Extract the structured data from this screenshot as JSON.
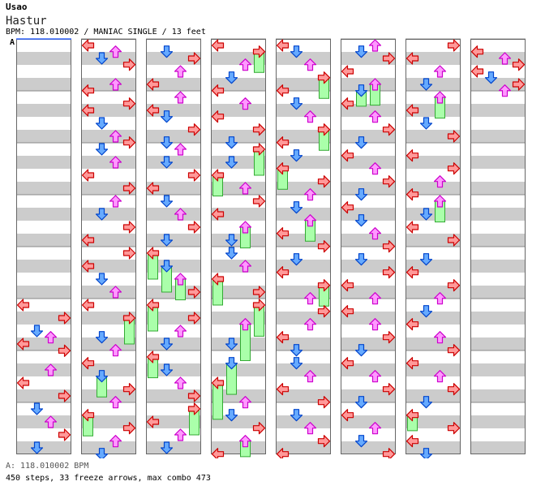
{
  "header": {
    "artist": "Usao",
    "title": "Hastur",
    "info": "BPM: 118.010002 / MANIAC SINGLE / 13 feet",
    "section_marker": "A"
  },
  "footer": {
    "bpm_line": "A: 118.010002 BPM",
    "stats_line": "450 steps, 33 freeze arrows, max combo 473"
  },
  "colors": {
    "stripe_gray": "#cccccc",
    "left_arrow": "#ff9999",
    "down_arrow": "#66aaff",
    "up_arrow": "#ff99ff",
    "right_arrow": "#ff9999",
    "freeze": "#aaffaa"
  },
  "chart_data": {
    "type": "step-chart",
    "lanes": [
      "left",
      "down",
      "up",
      "right"
    ],
    "columns": 8,
    "measures_per_column": 8,
    "notes": [
      {
        "col": 0,
        "m": 5,
        "b": 0.0,
        "l": 0
      },
      {
        "col": 0,
        "m": 5,
        "b": 0.25,
        "l": 3
      },
      {
        "col": 0,
        "m": 5,
        "b": 0.5,
        "l": 1
      },
      {
        "col": 0,
        "m": 5,
        "b": 0.62,
        "l": 2
      },
      {
        "col": 0,
        "m": 5,
        "b": 0.75,
        "l": 0
      },
      {
        "col": 0,
        "m": 5,
        "b": 0.88,
        "l": 3
      },
      {
        "col": 0,
        "m": 6,
        "b": 0.25,
        "l": 2
      },
      {
        "col": 0,
        "m": 6,
        "b": 0.5,
        "l": 0
      },
      {
        "col": 0,
        "m": 6,
        "b": 0.75,
        "l": 3
      },
      {
        "col": 0,
        "m": 7,
        "b": 0.0,
        "l": 1
      },
      {
        "col": 0,
        "m": 7,
        "b": 0.25,
        "l": 2
      },
      {
        "col": 0,
        "m": 7,
        "b": 0.5,
        "l": 3
      },
      {
        "col": 0,
        "m": 7,
        "b": 0.75,
        "l": 1
      },
      {
        "col": 1,
        "m": 0,
        "b": 0.0,
        "l": 0
      },
      {
        "col": 1,
        "m": 0,
        "b": 0.12,
        "l": 2
      },
      {
        "col": 1,
        "m": 0,
        "b": 0.25,
        "l": 1
      },
      {
        "col": 1,
        "m": 0,
        "b": 0.37,
        "l": 3
      },
      {
        "col": 1,
        "m": 0,
        "b": 0.75,
        "l": 2
      },
      {
        "col": 1,
        "m": 0,
        "b": 0.87,
        "l": 0
      },
      {
        "col": 1,
        "m": 1,
        "b": 0.12,
        "l": 3
      },
      {
        "col": 1,
        "m": 1,
        "b": 0.25,
        "l": 0
      },
      {
        "col": 1,
        "m": 1,
        "b": 0.5,
        "l": 1
      },
      {
        "col": 1,
        "m": 1,
        "b": 0.75,
        "l": 2
      },
      {
        "col": 1,
        "m": 1,
        "b": 0.87,
        "l": 3
      },
      {
        "col": 1,
        "m": 2,
        "b": 0.0,
        "l": 1
      },
      {
        "col": 1,
        "m": 2,
        "b": 0.25,
        "l": 2
      },
      {
        "col": 1,
        "m": 2,
        "b": 0.5,
        "l": 0
      },
      {
        "col": 1,
        "m": 2,
        "b": 0.75,
        "l": 3
      },
      {
        "col": 1,
        "m": 3,
        "b": 0.0,
        "l": 2
      },
      {
        "col": 1,
        "m": 3,
        "b": 0.25,
        "l": 1
      },
      {
        "col": 1,
        "m": 3,
        "b": 0.5,
        "l": 3
      },
      {
        "col": 1,
        "m": 3,
        "b": 0.75,
        "l": 0
      },
      {
        "col": 1,
        "m": 4,
        "b": 0.0,
        "l": 3
      },
      {
        "col": 1,
        "m": 4,
        "b": 0.25,
        "l": 0
      },
      {
        "col": 1,
        "m": 4,
        "b": 0.5,
        "l": 1
      },
      {
        "col": 1,
        "m": 4,
        "b": 0.75,
        "l": 2
      },
      {
        "col": 1,
        "m": 5,
        "b": 0.0,
        "l": 0
      },
      {
        "col": 1,
        "m": 5,
        "b": 0.25,
        "l": 3,
        "freeze": 0.5
      },
      {
        "col": 1,
        "m": 5,
        "b": 0.62,
        "l": 1
      },
      {
        "col": 1,
        "m": 5,
        "b": 0.87,
        "l": 2
      },
      {
        "col": 1,
        "m": 6,
        "b": 0.12,
        "l": 0
      },
      {
        "col": 1,
        "m": 6,
        "b": 0.37,
        "l": 1,
        "freeze": 0.4
      },
      {
        "col": 1,
        "m": 6,
        "b": 0.62,
        "l": 3
      },
      {
        "col": 1,
        "m": 6,
        "b": 0.87,
        "l": 2
      },
      {
        "col": 1,
        "m": 7,
        "b": 0.12,
        "l": 0,
        "freeze": 0.4
      },
      {
        "col": 1,
        "m": 7,
        "b": 0.37,
        "l": 3
      },
      {
        "col": 1,
        "m": 7,
        "b": 0.62,
        "l": 2
      },
      {
        "col": 1,
        "m": 7,
        "b": 0.87,
        "l": 1
      },
      {
        "col": 2,
        "m": 0,
        "b": 0.12,
        "l": 1
      },
      {
        "col": 2,
        "m": 0,
        "b": 0.25,
        "l": 3
      },
      {
        "col": 2,
        "m": 0,
        "b": 0.5,
        "l": 2
      },
      {
        "col": 2,
        "m": 0,
        "b": 0.75,
        "l": 0
      },
      {
        "col": 2,
        "m": 1,
        "b": 0.0,
        "l": 2
      },
      {
        "col": 2,
        "m": 1,
        "b": 0.25,
        "l": 0
      },
      {
        "col": 2,
        "m": 1,
        "b": 0.37,
        "l": 1
      },
      {
        "col": 2,
        "m": 1,
        "b": 0.62,
        "l": 3
      },
      {
        "col": 2,
        "m": 1,
        "b": 0.87,
        "l": 1
      },
      {
        "col": 2,
        "m": 2,
        "b": 0.0,
        "l": 2
      },
      {
        "col": 2,
        "m": 2,
        "b": 0.25,
        "l": 1
      },
      {
        "col": 2,
        "m": 2,
        "b": 0.5,
        "l": 3
      },
      {
        "col": 2,
        "m": 2,
        "b": 0.75,
        "l": 0
      },
      {
        "col": 2,
        "m": 3,
        "b": 0.0,
        "l": 1
      },
      {
        "col": 2,
        "m": 3,
        "b": 0.25,
        "l": 2
      },
      {
        "col": 2,
        "m": 3,
        "b": 0.5,
        "l": 3
      },
      {
        "col": 2,
        "m": 3,
        "b": 0.75,
        "l": 1
      },
      {
        "col": 2,
        "m": 4,
        "b": 0.0,
        "l": 0,
        "freeze": 0.5
      },
      {
        "col": 2,
        "m": 4,
        "b": 0.25,
        "l": 1,
        "freeze": 0.5
      },
      {
        "col": 2,
        "m": 4,
        "b": 0.5,
        "l": 2,
        "freeze": 0.4
      },
      {
        "col": 2,
        "m": 4,
        "b": 0.75,
        "l": 3
      },
      {
        "col": 2,
        "m": 5,
        "b": 0.0,
        "l": 0,
        "freeze": 0.5
      },
      {
        "col": 2,
        "m": 5,
        "b": 0.25,
        "l": 3
      },
      {
        "col": 2,
        "m": 5,
        "b": 0.5,
        "l": 2
      },
      {
        "col": 2,
        "m": 5,
        "b": 0.75,
        "l": 1
      },
      {
        "col": 2,
        "m": 6,
        "b": 0.0,
        "l": 0,
        "freeze": 0.4
      },
      {
        "col": 2,
        "m": 6,
        "b": 0.25,
        "l": 1
      },
      {
        "col": 2,
        "m": 6,
        "b": 0.5,
        "l": 2
      },
      {
        "col": 2,
        "m": 6,
        "b": 0.75,
        "l": 3
      },
      {
        "col": 2,
        "m": 7,
        "b": 0.0,
        "l": 3,
        "freeze": 0.5
      },
      {
        "col": 2,
        "m": 7,
        "b": 0.25,
        "l": 0
      },
      {
        "col": 2,
        "m": 7,
        "b": 0.5,
        "l": 2
      },
      {
        "col": 2,
        "m": 7,
        "b": 0.75,
        "l": 1
      },
      {
        "col": 3,
        "m": 0,
        "b": 0.0,
        "l": 0
      },
      {
        "col": 3,
        "m": 0,
        "b": 0.12,
        "l": 3,
        "freeze": 0.4
      },
      {
        "col": 3,
        "m": 0,
        "b": 0.37,
        "l": 2
      },
      {
        "col": 3,
        "m": 0,
        "b": 0.62,
        "l": 1
      },
      {
        "col": 3,
        "m": 0,
        "b": 0.87,
        "l": 0
      },
      {
        "col": 3,
        "m": 1,
        "b": 0.12,
        "l": 2
      },
      {
        "col": 3,
        "m": 1,
        "b": 0.37,
        "l": 0
      },
      {
        "col": 3,
        "m": 1,
        "b": 0.62,
        "l": 3
      },
      {
        "col": 3,
        "m": 1,
        "b": 0.87,
        "l": 1
      },
      {
        "col": 3,
        "m": 2,
        "b": 0.0,
        "l": 3,
        "freeze": 0.5
      },
      {
        "col": 3,
        "m": 2,
        "b": 0.25,
        "l": 1
      },
      {
        "col": 3,
        "m": 2,
        "b": 0.5,
        "l": 0,
        "freeze": 0.4
      },
      {
        "col": 3,
        "m": 2,
        "b": 0.75,
        "l": 2
      },
      {
        "col": 3,
        "m": 3,
        "b": 0.0,
        "l": 3
      },
      {
        "col": 3,
        "m": 3,
        "b": 0.25,
        "l": 0
      },
      {
        "col": 3,
        "m": 3,
        "b": 0.5,
        "l": 2,
        "freeze": 0.4
      },
      {
        "col": 3,
        "m": 3,
        "b": 0.75,
        "l": 1
      },
      {
        "col": 3,
        "m": 4,
        "b": 0.0,
        "l": 1
      },
      {
        "col": 3,
        "m": 4,
        "b": 0.25,
        "l": 2
      },
      {
        "col": 3,
        "m": 4,
        "b": 0.5,
        "l": 0,
        "freeze": 0.5
      },
      {
        "col": 3,
        "m": 4,
        "b": 0.75,
        "l": 3
      },
      {
        "col": 3,
        "m": 5,
        "b": 0.0,
        "l": 3,
        "freeze": 0.6
      },
      {
        "col": 3,
        "m": 5,
        "b": 0.37,
        "l": 2,
        "freeze": 0.7
      },
      {
        "col": 3,
        "m": 5,
        "b": 0.75,
        "l": 1
      },
      {
        "col": 3,
        "m": 6,
        "b": 0.12,
        "l": 1,
        "freeze": 0.6
      },
      {
        "col": 3,
        "m": 6,
        "b": 0.5,
        "l": 0,
        "freeze": 0.7
      },
      {
        "col": 3,
        "m": 6,
        "b": 0.87,
        "l": 2
      },
      {
        "col": 3,
        "m": 7,
        "b": 0.12,
        "l": 1
      },
      {
        "col": 3,
        "m": 7,
        "b": 0.37,
        "l": 3
      },
      {
        "col": 3,
        "m": 7,
        "b": 0.62,
        "l": 2,
        "freeze": 0.3
      },
      {
        "col": 3,
        "m": 7,
        "b": 0.87,
        "l": 0
      },
      {
        "col": 4,
        "m": 0,
        "b": 0.0,
        "l": 0
      },
      {
        "col": 4,
        "m": 0,
        "b": 0.12,
        "l": 1
      },
      {
        "col": 4,
        "m": 0,
        "b": 0.37,
        "l": 2
      },
      {
        "col": 4,
        "m": 0,
        "b": 0.62,
        "l": 3,
        "freeze": 0.4
      },
      {
        "col": 4,
        "m": 0,
        "b": 0.87,
        "l": 0
      },
      {
        "col": 4,
        "m": 1,
        "b": 0.12,
        "l": 1
      },
      {
        "col": 4,
        "m": 1,
        "b": 0.37,
        "l": 2
      },
      {
        "col": 4,
        "m": 1,
        "b": 0.62,
        "l": 3,
        "freeze": 0.4
      },
      {
        "col": 4,
        "m": 1,
        "b": 0.87,
        "l": 0
      },
      {
        "col": 4,
        "m": 2,
        "b": 0.12,
        "l": 1
      },
      {
        "col": 4,
        "m": 2,
        "b": 0.37,
        "l": 0,
        "freeze": 0.4
      },
      {
        "col": 4,
        "m": 2,
        "b": 0.62,
        "l": 3
      },
      {
        "col": 4,
        "m": 2,
        "b": 0.87,
        "l": 2
      },
      {
        "col": 4,
        "m": 3,
        "b": 0.12,
        "l": 1
      },
      {
        "col": 4,
        "m": 3,
        "b": 0.37,
        "l": 2,
        "freeze": 0.4
      },
      {
        "col": 4,
        "m": 3,
        "b": 0.62,
        "l": 0
      },
      {
        "col": 4,
        "m": 3,
        "b": 0.87,
        "l": 3
      },
      {
        "col": 4,
        "m": 4,
        "b": 0.12,
        "l": 1
      },
      {
        "col": 4,
        "m": 4,
        "b": 0.37,
        "l": 0
      },
      {
        "col": 4,
        "m": 4,
        "b": 0.62,
        "l": 3,
        "freeze": 0.4
      },
      {
        "col": 4,
        "m": 4,
        "b": 0.87,
        "l": 2
      },
      {
        "col": 4,
        "m": 5,
        "b": 0.12,
        "l": 3
      },
      {
        "col": 4,
        "m": 5,
        "b": 0.37,
        "l": 2
      },
      {
        "col": 4,
        "m": 5,
        "b": 0.62,
        "l": 0
      },
      {
        "col": 4,
        "m": 5,
        "b": 0.87,
        "l": 1
      },
      {
        "col": 4,
        "m": 6,
        "b": 0.12,
        "l": 1
      },
      {
        "col": 4,
        "m": 6,
        "b": 0.37,
        "l": 2
      },
      {
        "col": 4,
        "m": 6,
        "b": 0.62,
        "l": 0
      },
      {
        "col": 4,
        "m": 6,
        "b": 0.87,
        "l": 3
      },
      {
        "col": 4,
        "m": 7,
        "b": 0.12,
        "l": 1
      },
      {
        "col": 4,
        "m": 7,
        "b": 0.37,
        "l": 2
      },
      {
        "col": 4,
        "m": 7,
        "b": 0.62,
        "l": 3
      },
      {
        "col": 4,
        "m": 7,
        "b": 0.87,
        "l": 0
      },
      {
        "col": 5,
        "m": 0,
        "b": 0.0,
        "l": 2
      },
      {
        "col": 5,
        "m": 0,
        "b": 0.12,
        "l": 1
      },
      {
        "col": 5,
        "m": 0,
        "b": 0.25,
        "l": 3
      },
      {
        "col": 5,
        "m": 0,
        "b": 0.5,
        "l": 0
      },
      {
        "col": 5,
        "m": 0,
        "b": 0.75,
        "l": 2,
        "freeze": 0.4
      },
      {
        "col": 5,
        "m": 0,
        "b": 0.87,
        "l": 1,
        "freeze": 0.3
      },
      {
        "col": 5,
        "m": 1,
        "b": 0.12,
        "l": 0
      },
      {
        "col": 5,
        "m": 1,
        "b": 0.37,
        "l": 2
      },
      {
        "col": 5,
        "m": 1,
        "b": 0.62,
        "l": 3
      },
      {
        "col": 5,
        "m": 1,
        "b": 0.87,
        "l": 1
      },
      {
        "col": 5,
        "m": 2,
        "b": 0.12,
        "l": 0
      },
      {
        "col": 5,
        "m": 2,
        "b": 0.37,
        "l": 2
      },
      {
        "col": 5,
        "m": 2,
        "b": 0.62,
        "l": 3
      },
      {
        "col": 5,
        "m": 2,
        "b": 0.87,
        "l": 1
      },
      {
        "col": 5,
        "m": 3,
        "b": 0.12,
        "l": 0
      },
      {
        "col": 5,
        "m": 3,
        "b": 0.37,
        "l": 1
      },
      {
        "col": 5,
        "m": 3,
        "b": 0.62,
        "l": 2
      },
      {
        "col": 5,
        "m": 3,
        "b": 0.87,
        "l": 3
      },
      {
        "col": 5,
        "m": 4,
        "b": 0.12,
        "l": 1
      },
      {
        "col": 5,
        "m": 4,
        "b": 0.37,
        "l": 3
      },
      {
        "col": 5,
        "m": 4,
        "b": 0.62,
        "l": 0
      },
      {
        "col": 5,
        "m": 4,
        "b": 0.87,
        "l": 2
      },
      {
        "col": 5,
        "m": 5,
        "b": 0.12,
        "l": 0
      },
      {
        "col": 5,
        "m": 5,
        "b": 0.37,
        "l": 2
      },
      {
        "col": 5,
        "m": 5,
        "b": 0.62,
        "l": 3
      },
      {
        "col": 5,
        "m": 5,
        "b": 0.87,
        "l": 1
      },
      {
        "col": 5,
        "m": 6,
        "b": 0.12,
        "l": 0
      },
      {
        "col": 5,
        "m": 6,
        "b": 0.37,
        "l": 2
      },
      {
        "col": 5,
        "m": 6,
        "b": 0.62,
        "l": 3
      },
      {
        "col": 5,
        "m": 6,
        "b": 0.87,
        "l": 1
      },
      {
        "col": 5,
        "m": 7,
        "b": 0.12,
        "l": 0
      },
      {
        "col": 5,
        "m": 7,
        "b": 0.37,
        "l": 2
      },
      {
        "col": 5,
        "m": 7,
        "b": 0.62,
        "l": 1
      },
      {
        "col": 5,
        "m": 7,
        "b": 0.87,
        "l": 3
      },
      {
        "col": 6,
        "m": 0,
        "b": 0.0,
        "l": 3
      },
      {
        "col": 6,
        "m": 0,
        "b": 0.25,
        "l": 0
      },
      {
        "col": 6,
        "m": 0,
        "b": 0.5,
        "l": 2
      },
      {
        "col": 6,
        "m": 0,
        "b": 0.75,
        "l": 1
      },
      {
        "col": 6,
        "m": 1,
        "b": 0.0,
        "l": 2,
        "freeze": 0.4
      },
      {
        "col": 6,
        "m": 1,
        "b": 0.25,
        "l": 0
      },
      {
        "col": 6,
        "m": 1,
        "b": 0.5,
        "l": 1
      },
      {
        "col": 6,
        "m": 1,
        "b": 0.75,
        "l": 3
      },
      {
        "col": 6,
        "m": 2,
        "b": 0.12,
        "l": 0
      },
      {
        "col": 6,
        "m": 2,
        "b": 0.37,
        "l": 3
      },
      {
        "col": 6,
        "m": 2,
        "b": 0.62,
        "l": 2
      },
      {
        "col": 6,
        "m": 2,
        "b": 0.87,
        "l": 0
      },
      {
        "col": 6,
        "m": 3,
        "b": 0.0,
        "l": 2,
        "freeze": 0.4
      },
      {
        "col": 6,
        "m": 3,
        "b": 0.25,
        "l": 1
      },
      {
        "col": 6,
        "m": 3,
        "b": 0.5,
        "l": 0
      },
      {
        "col": 6,
        "m": 3,
        "b": 0.75,
        "l": 3
      },
      {
        "col": 6,
        "m": 4,
        "b": 0.12,
        "l": 1
      },
      {
        "col": 6,
        "m": 4,
        "b": 0.37,
        "l": 0
      },
      {
        "col": 6,
        "m": 4,
        "b": 0.62,
        "l": 3
      },
      {
        "col": 6,
        "m": 4,
        "b": 0.87,
        "l": 2
      },
      {
        "col": 6,
        "m": 5,
        "b": 0.12,
        "l": 1
      },
      {
        "col": 6,
        "m": 5,
        "b": 0.37,
        "l": 0
      },
      {
        "col": 6,
        "m": 5,
        "b": 0.62,
        "l": 2
      },
      {
        "col": 6,
        "m": 5,
        "b": 0.87,
        "l": 3
      },
      {
        "col": 6,
        "m": 6,
        "b": 0.12,
        "l": 0
      },
      {
        "col": 6,
        "m": 6,
        "b": 0.37,
        "l": 2
      },
      {
        "col": 6,
        "m": 6,
        "b": 0.62,
        "l": 3
      },
      {
        "col": 6,
        "m": 6,
        "b": 0.87,
        "l": 1
      },
      {
        "col": 6,
        "m": 7,
        "b": 0.12,
        "l": 0,
        "freeze": 0.3
      },
      {
        "col": 6,
        "m": 7,
        "b": 0.37,
        "l": 3
      },
      {
        "col": 6,
        "m": 7,
        "b": 0.62,
        "l": 0
      },
      {
        "col": 6,
        "m": 7,
        "b": 0.87,
        "l": 1
      },
      {
        "col": 7,
        "m": 0,
        "b": 0.12,
        "l": 0
      },
      {
        "col": 7,
        "m": 0,
        "b": 0.25,
        "l": 2
      },
      {
        "col": 7,
        "m": 0,
        "b": 0.37,
        "l": 3
      },
      {
        "col": 7,
        "m": 0,
        "b": 0.5,
        "l": 0
      },
      {
        "col": 7,
        "m": 0,
        "b": 0.62,
        "l": 1
      },
      {
        "col": 7,
        "m": 0,
        "b": 0.75,
        "l": 3
      },
      {
        "col": 7,
        "m": 0,
        "b": 0.87,
        "l": 2
      }
    ]
  }
}
